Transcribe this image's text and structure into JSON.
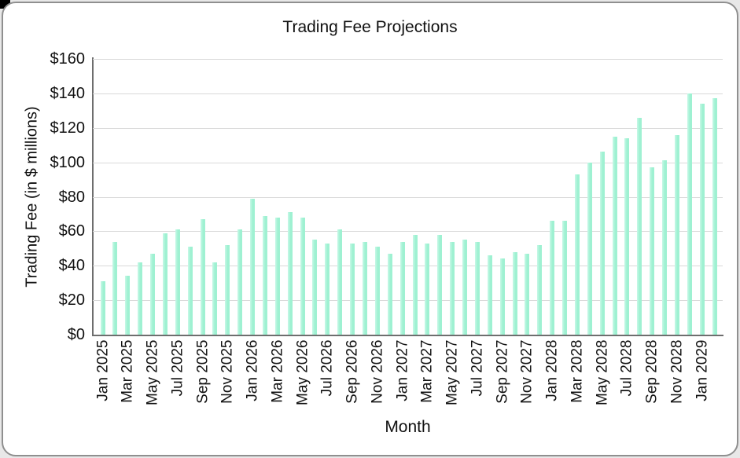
{
  "window": {
    "background": "#ffffff",
    "card_border_color": "#8f8f8f",
    "corner_artifact_color": "#000000"
  },
  "colors": {
    "bar_main": "#9ff1d2",
    "bar_highlight": "#c9f8e7",
    "gridline": "#d9d9d9",
    "axis_line": "#6e6e6e",
    "text": "#111111"
  },
  "chart_data": {
    "type": "bar",
    "title": "Trading Fee Projections",
    "xlabel": "Month",
    "ylabel": "Trading Fee (in $ millions)",
    "ylim": [
      0,
      160
    ],
    "ytick_step": 20,
    "ytick_labels": [
      "$0",
      "$20",
      "$40",
      "$60",
      "$80",
      "$100",
      "$120",
      "$140",
      "$160"
    ],
    "grid": "horizontal-only",
    "legend": "none",
    "x": [
      "Jan 2025",
      "Feb 2025",
      "Mar 2025",
      "Apr 2025",
      "May 2025",
      "Jun 2025",
      "Jul 2025",
      "Aug 2025",
      "Sep 2025",
      "Oct 2025",
      "Nov 2025",
      "Dec 2025",
      "Jan 2026",
      "Feb 2026",
      "Mar 2026",
      "Apr 2026",
      "May 2026",
      "Jun 2026",
      "Jul 2026",
      "Aug 2026",
      "Sep 2026",
      "Oct 2026",
      "Nov 2026",
      "Dec 2026",
      "Jan 2027",
      "Feb 2027",
      "Mar 2027",
      "Apr 2027",
      "May 2027",
      "Jun 2027",
      "Jul 2027",
      "Aug 2027",
      "Sep 2027",
      "Oct 2027",
      "Nov 2027",
      "Dec 2027",
      "Jan 2028",
      "Feb 2028",
      "Mar 2028",
      "Apr 2028",
      "May 2028",
      "Jun 2028",
      "Jul 2028",
      "Aug 2028",
      "Sep 2028",
      "Oct 2028",
      "Nov 2028",
      "Dec 2028",
      "Jan 2029",
      "Feb 2029"
    ],
    "values": [
      31,
      54,
      34,
      42,
      47,
      59,
      61,
      51,
      67,
      42,
      52,
      61,
      79,
      69,
      68,
      71,
      68,
      55,
      53,
      61,
      53,
      54,
      51,
      47,
      54,
      58,
      53,
      58,
      54,
      55,
      54,
      46,
      44,
      48,
      47,
      52,
      66,
      66,
      93,
      100,
      106,
      115,
      114,
      126,
      97,
      101,
      116,
      140,
      134,
      137
    ],
    "x_tick_labels_shown": [
      "Jan 2025",
      "Mar 2025",
      "May 2025",
      "Jul 2025",
      "Sep 2025",
      "Nov 2025",
      "Jan 2026",
      "Mar 2026",
      "May 2026",
      "Jul 2026",
      "Sep 2026",
      "Nov 2026",
      "Jan 2027",
      "Mar 2027",
      "May 2027",
      "Jul 2027",
      "Sep 2027",
      "Nov 2027",
      "Jan 2028",
      "Mar 2028",
      "May 2028",
      "Jul 2028",
      "Sep 2028",
      "Nov 2028",
      "Jan 2029"
    ],
    "x_tick_every_n_bars": 2
  }
}
